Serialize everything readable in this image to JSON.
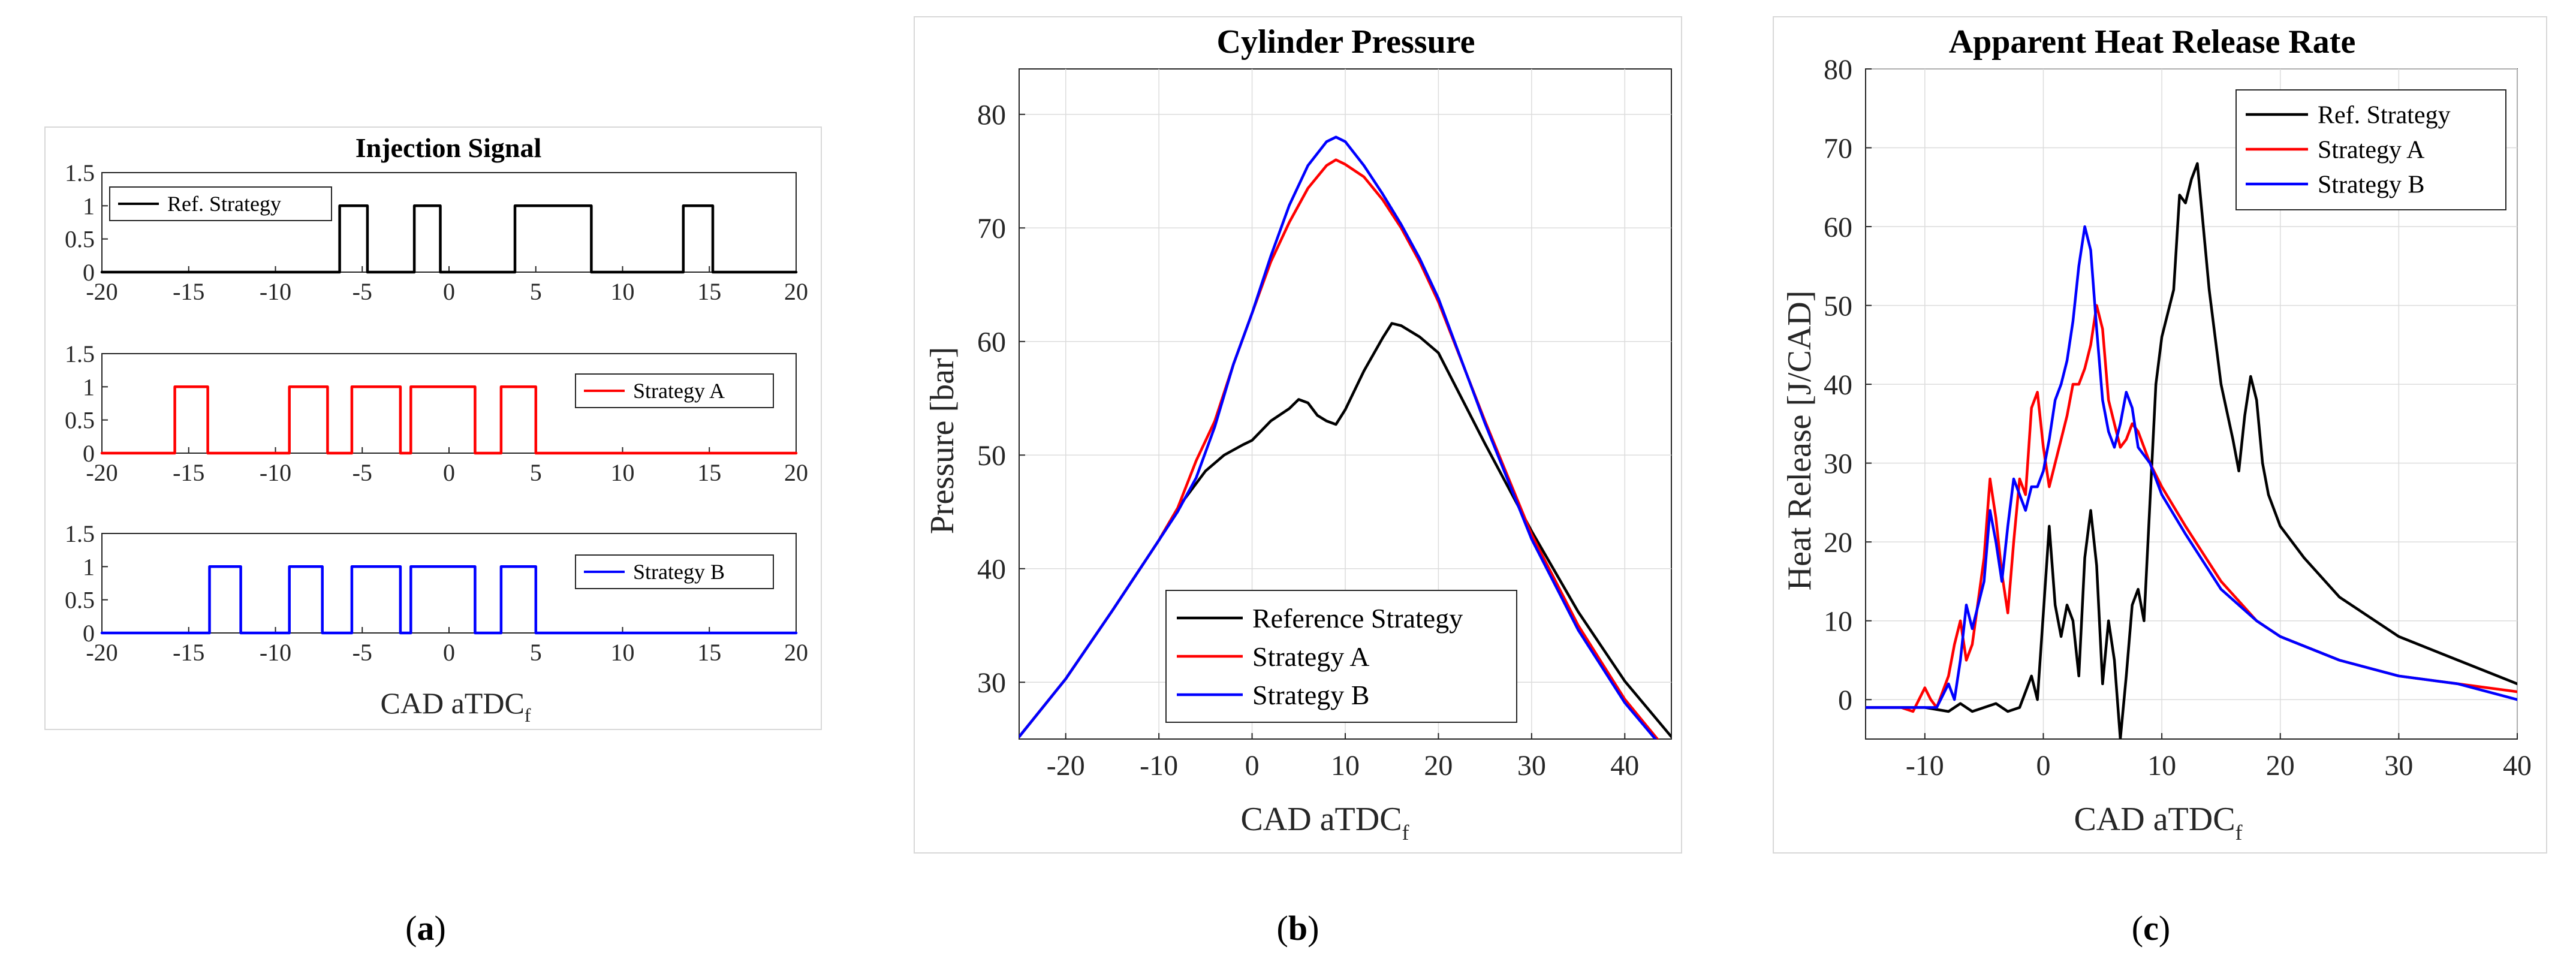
{
  "colors": {
    "ref": "#000000",
    "a": "#ff0000",
    "b": "#0000ff",
    "axis": "#262626",
    "grid": "#dcdcdc"
  },
  "captions": {
    "a_open": "(",
    "a_letter": "a",
    "a_close": ")",
    "b_open": "(",
    "b_letter": "b",
    "b_close": ")",
    "c_open": "(",
    "c_letter": "c",
    "c_close": ")"
  },
  "chart_data": [
    {
      "id": "injection",
      "type": "line",
      "title": "Injection Signal",
      "xlabel": "CAD aTDC",
      "xlabel_sub": "f",
      "xlim": [
        -20,
        20
      ],
      "ylim": [
        0,
        1.5
      ],
      "xticks": [
        -20,
        -15,
        -10,
        -5,
        0,
        5,
        10,
        15,
        20
      ],
      "xtick_labels": [
        "-20",
        "-15",
        "-10",
        "-5",
        "0",
        "5",
        "10",
        "15",
        "20"
      ],
      "yticks": [
        0,
        0.5,
        1,
        1.5
      ],
      "ytick_labels": [
        "0",
        "0.5",
        "1",
        "1.5"
      ],
      "series": [
        {
          "name": "Ref. Strategy",
          "color": "#000000",
          "pulses": [
            [
              -6.3,
              -4.7
            ],
            [
              -2.0,
              -0.5
            ],
            [
              3.8,
              8.2
            ],
            [
              13.5,
              15.2
            ]
          ]
        },
        {
          "name": "Strategy A",
          "color": "#ff0000",
          "pulses": [
            [
              -15.8,
              -13.9
            ],
            [
              -9.2,
              -7.0
            ],
            [
              -5.6,
              -2.8
            ],
            [
              -2.2,
              1.5
            ],
            [
              3.0,
              5.0
            ]
          ]
        },
        {
          "name": "Strategy B",
          "color": "#0000ff",
          "pulses": [
            [
              -13.8,
              -12.0
            ],
            [
              -9.2,
              -7.3
            ],
            [
              -5.6,
              -2.8
            ],
            [
              -2.2,
              1.5
            ],
            [
              3.0,
              5.0
            ]
          ]
        }
      ]
    },
    {
      "id": "pressure",
      "type": "line",
      "title": "Cylinder Pressure",
      "xlabel": "CAD aTDC",
      "xlabel_sub": "f",
      "ylabel": "Pressure [bar]",
      "xlim": [
        -25,
        45
      ],
      "ylim": [
        25,
        84
      ],
      "grid": true,
      "xticks": [
        -20,
        -10,
        0,
        10,
        20,
        30,
        40
      ],
      "xtick_labels": [
        "-20",
        "-10",
        "0",
        "10",
        "20",
        "30",
        "40"
      ],
      "yticks": [
        30,
        40,
        50,
        60,
        70,
        80
      ],
      "ytick_labels": [
        "30",
        "40",
        "50",
        "60",
        "70",
        "80"
      ],
      "legend": "bottom-right",
      "series": [
        {
          "name": "Reference Strategy",
          "color": "#000000",
          "x": [
            -25,
            -20,
            -15,
            -10,
            -8,
            -5,
            -3,
            -1,
            0,
            2,
            4,
            5,
            6,
            7,
            8,
            9,
            10,
            12,
            14,
            15,
            16,
            18,
            20,
            25,
            30,
            35,
            40,
            45
          ],
          "y": [
            25.2,
            30.3,
            36.3,
            42.5,
            45.3,
            48.6,
            50.0,
            50.9,
            51.3,
            53.0,
            54.1,
            54.9,
            54.6,
            53.5,
            53.0,
            52.7,
            54.0,
            57.4,
            60.3,
            61.6,
            61.4,
            60.4,
            59.0,
            51.0,
            43.3,
            36.2,
            30.1,
            25.2
          ]
        },
        {
          "name": "Strategy A",
          "color": "#ff0000",
          "x": [
            -25,
            -20,
            -15,
            -10,
            -8,
            -6,
            -4,
            -2,
            0,
            2,
            4,
            6,
            8,
            9,
            10,
            12,
            14,
            16,
            18,
            20,
            25,
            30,
            35,
            40,
            44
          ],
          "y": [
            25.2,
            30.3,
            36.3,
            42.5,
            45.3,
            49.5,
            53.0,
            58.0,
            62.5,
            67.0,
            70.5,
            73.5,
            75.5,
            76.0,
            75.6,
            74.5,
            72.5,
            70.0,
            67.0,
            63.5,
            53.0,
            43.0,
            35.0,
            28.5,
            24.5
          ]
        },
        {
          "name": "Strategy B",
          "color": "#0000ff",
          "x": [
            -25,
            -20,
            -15,
            -10,
            -8,
            -6,
            -4,
            -2,
            0,
            2,
            4,
            6,
            8,
            9,
            10,
            12,
            14,
            16,
            18,
            20,
            25,
            30,
            35,
            40,
            44
          ],
          "y": [
            25.2,
            30.3,
            36.3,
            42.5,
            45.0,
            48.0,
            52.5,
            58.0,
            62.5,
            67.5,
            72.0,
            75.5,
            77.6,
            78.0,
            77.6,
            75.5,
            73.0,
            70.3,
            67.3,
            63.8,
            52.8,
            42.6,
            34.6,
            28.2,
            24.3
          ]
        }
      ]
    },
    {
      "id": "ahrr",
      "type": "line",
      "title": "Apparent Heat Release Rate",
      "xlabel": "CAD aTDC",
      "xlabel_sub": "f",
      "ylabel": "Heat Release [J/CAD]",
      "xlim": [
        -15,
        40
      ],
      "ylim": [
        -5,
        80
      ],
      "grid": true,
      "xticks": [
        -10,
        0,
        10,
        20,
        30,
        40
      ],
      "xtick_labels": [
        "-10",
        "0",
        "10",
        "20",
        "30",
        "40"
      ],
      "yticks": [
        0,
        10,
        20,
        30,
        40,
        50,
        60,
        70,
        80
      ],
      "ytick_labels": [
        "0",
        "10",
        "20",
        "30",
        "40",
        "50",
        "60",
        "70",
        "80"
      ],
      "legend": "top-right",
      "series": [
        {
          "name": "Ref. Strategy",
          "color": "#000000",
          "x": [
            -15,
            -10,
            -8,
            -7,
            -6,
            -5,
            -4,
            -3,
            -2,
            -1,
            -0.5,
            0,
            0.5,
            1,
            1.5,
            2,
            2.5,
            3,
            3.5,
            4,
            4.5,
            5,
            5.5,
            6,
            6.5,
            7,
            7.5,
            8,
            8.5,
            9,
            9.5,
            10,
            11,
            11.5,
            12,
            12.5,
            13,
            13.5,
            14,
            15,
            16,
            16.5,
            17,
            17.5,
            18,
            18.5,
            19,
            20,
            22,
            25,
            30,
            35,
            40
          ],
          "y": [
            -1,
            -1,
            -1.5,
            -0.5,
            -1.5,
            -1,
            -0.5,
            -1.5,
            -1,
            3,
            0,
            11,
            22,
            12,
            8,
            12,
            10,
            3,
            18,
            24,
            17,
            2,
            10,
            5,
            -5,
            3,
            12,
            14,
            10,
            25,
            40,
            46,
            52,
            64,
            63,
            66,
            68,
            60,
            52,
            40,
            33,
            29,
            36,
            41,
            38,
            30,
            26,
            22,
            18,
            13,
            8,
            5,
            2
          ]
        },
        {
          "name": "Strategy A",
          "color": "#ff0000",
          "x": [
            -15,
            -12,
            -11,
            -10,
            -9.5,
            -9,
            -8,
            -7.5,
            -7,
            -6.5,
            -6,
            -5,
            -4.5,
            -4,
            -3.5,
            -3,
            -2.5,
            -2,
            -1.5,
            -1,
            -0.5,
            0,
            0.5,
            1,
            1.5,
            2,
            2.5,
            3,
            3.5,
            4,
            4.5,
            5,
            5.5,
            6,
            6.5,
            7,
            7.5,
            8,
            9,
            10,
            12,
            15,
            18,
            20,
            25,
            30,
            35,
            40
          ],
          "y": [
            -1,
            -1,
            -1.5,
            1.5,
            0,
            -1,
            3,
            7,
            10,
            5,
            7,
            18,
            28,
            23,
            16,
            11,
            20,
            28,
            26,
            37,
            39,
            32,
            27,
            30,
            33,
            36,
            40,
            40,
            42,
            45,
            50,
            47,
            38,
            35,
            32,
            33,
            35,
            34,
            30,
            27,
            22,
            15,
            10,
            8,
            5,
            3,
            2,
            1
          ]
        },
        {
          "name": "Strategy B",
          "color": "#0000ff",
          "x": [
            -15,
            -10,
            -9,
            -8,
            -7.5,
            -7,
            -6.5,
            -6,
            -5,
            -4.5,
            -4,
            -3.5,
            -3,
            -2.5,
            -2,
            -1.5,
            -1,
            -0.5,
            0,
            0.5,
            1,
            1.5,
            2,
            2.5,
            3,
            3.5,
            4,
            4.5,
            5,
            5.5,
            6,
            6.5,
            7,
            7.5,
            8,
            9,
            10,
            12,
            15,
            18,
            20,
            25,
            30,
            35,
            40
          ],
          "y": [
            -1,
            -1,
            -1,
            2,
            0,
            5,
            12,
            9,
            15,
            24,
            20,
            15,
            22,
            28,
            26,
            24,
            27,
            27,
            29,
            33,
            38,
            40,
            43,
            48,
            55,
            60,
            57,
            47,
            38,
            34,
            32,
            35,
            39,
            37,
            32,
            30,
            26,
            21,
            14,
            10,
            8,
            5,
            3,
            2,
            0
          ]
        }
      ]
    }
  ]
}
